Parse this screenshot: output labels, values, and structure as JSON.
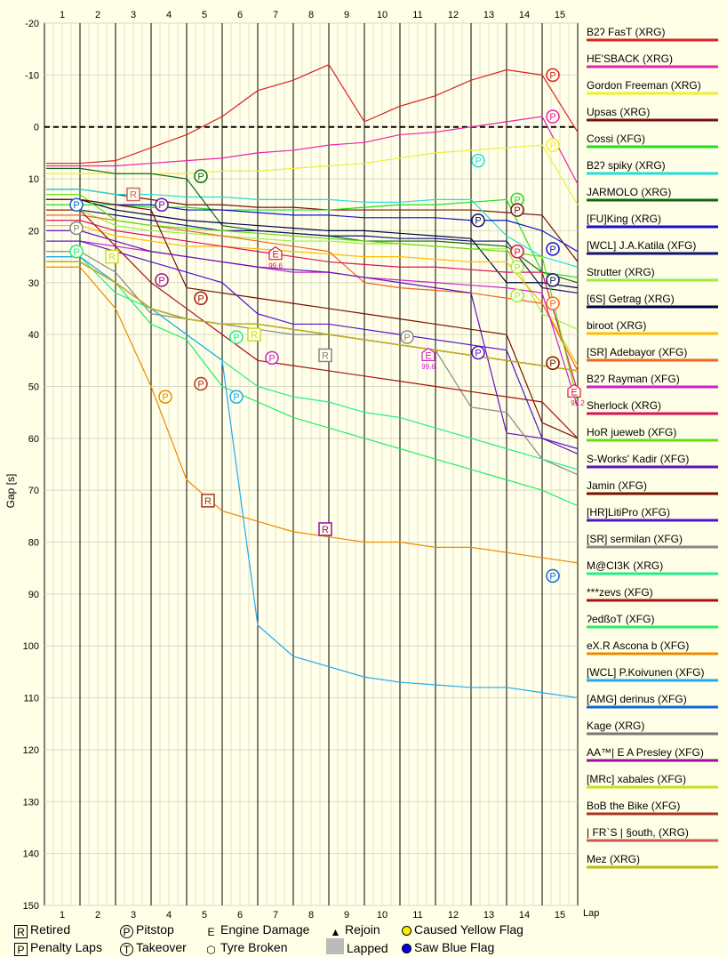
{
  "chart_data": {
    "type": "line",
    "ylabel": "Gap [s]",
    "xlabel": "Lap",
    "ylim": [
      -20,
      150
    ],
    "y_ticks": [
      "-20",
      "-10",
      "0",
      "10",
      "20",
      "30",
      "40",
      "50",
      "60",
      "70",
      "80",
      "90",
      "100",
      "110",
      "120",
      "130",
      "140",
      "150"
    ],
    "x_ticks": [
      "1",
      "2",
      "3",
      "4",
      "5",
      "6",
      "7",
      "8",
      "9",
      "10",
      "11",
      "12",
      "13",
      "14",
      "15"
    ],
    "x_end_label": "Lap",
    "grid": true,
    "series": [
      {
        "name": "B2ʔ FasT (XRG)",
        "color": "#dd2222",
        "values": [
          7,
          6.5,
          4,
          1.5,
          -2,
          -7,
          -9,
          -12,
          -1,
          -4,
          -6,
          -9,
          -11,
          -10,
          1
        ]
      },
      {
        "name": "HE'SBACK (XRG)",
        "color": "#ee22aa",
        "values": [
          7.5,
          7.5,
          7,
          6.5,
          6,
          5,
          4.5,
          3.5,
          3,
          1.5,
          1,
          0,
          -1,
          -2,
          11
        ]
      },
      {
        "name": "Gordon Freeman (XRG)",
        "color": "#eeee33",
        "values": [
          9,
          9,
          9,
          9,
          8.5,
          8.5,
          8,
          7.5,
          7,
          6,
          5,
          4.5,
          4,
          3.5,
          15
        ]
      },
      {
        "name": "Upsas (XRG)",
        "color": "#771111",
        "values": [
          12,
          13,
          14,
          15,
          15,
          15.5,
          15.5,
          16,
          16,
          16,
          16,
          16,
          16.5,
          17,
          26
        ]
      },
      {
        "name": "Cossi (XFG)",
        "color": "#22dd22",
        "values": [
          15,
          15,
          15.5,
          15.5,
          16,
          16,
          16,
          16,
          15.5,
          15,
          15,
          14.5,
          14,
          28,
          29
        ]
      },
      {
        "name": "B2ʔ spiky (XRG)",
        "color": "#22dddd",
        "values": [
          12,
          13,
          13,
          13.5,
          13.5,
          14,
          14,
          14,
          14.5,
          14.5,
          14,
          14,
          21,
          25,
          27
        ]
      },
      {
        "name": "JARMOLO (XRG)",
        "color": "#116611",
        "values": [
          8,
          9,
          9,
          10,
          19,
          20,
          20.5,
          21,
          22,
          22,
          22,
          22.5,
          23,
          28,
          30
        ]
      },
      {
        "name": "[FU]King (XRG)",
        "color": "#1111cc",
        "values": [
          14,
          15,
          15,
          16,
          16,
          16.5,
          17,
          17,
          17.5,
          17.5,
          17.5,
          18,
          18,
          20,
          24
        ]
      },
      {
        "name": "[WCL] J.A.Katila (XFG)",
        "color": "#111177",
        "values": [
          16,
          17,
          18,
          19,
          20,
          20,
          20.5,
          21,
          21,
          21.5,
          21.5,
          22,
          22,
          31,
          32
        ]
      },
      {
        "name": "Strutter (XRG)",
        "color": "#99ee44",
        "values": [
          16,
          19,
          20,
          20.5,
          21,
          21.5,
          22,
          22,
          22.5,
          22.5,
          23,
          23.5,
          23.5,
          36,
          39
        ]
      },
      {
        "name": "[6S] Getrag (XRG)",
        "color": "#000044",
        "values": [
          14,
          16,
          17,
          18,
          18.5,
          19,
          19.5,
          20,
          20,
          20.5,
          21,
          21.5,
          30,
          30,
          31
        ]
      },
      {
        "name": "biroot (XRG)",
        "color": "#ffbb00",
        "values": [
          19,
          21,
          22,
          23,
          23,
          23.5,
          24,
          24.5,
          25,
          25,
          25.5,
          26,
          26,
          34,
          46
        ]
      },
      {
        "name": "[SR] Adebayor (XFG)",
        "color": "#ee6622",
        "values": [
          17,
          18,
          19,
          20,
          21,
          22,
          23,
          24,
          30,
          31,
          31.5,
          32,
          33,
          34,
          47
        ]
      },
      {
        "name": "B2ʔ Rayman (XFG)",
        "color": "#cc22cc",
        "values": [
          22,
          23,
          24,
          25,
          26,
          27,
          28,
          28,
          29,
          29.5,
          30,
          30.5,
          31,
          32,
          54
        ]
      },
      {
        "name": "Sherlock (XRG)",
        "color": "#dd1155",
        "values": [
          18,
          20,
          21,
          22,
          23,
          24,
          25,
          26,
          26.5,
          27,
          27,
          27.5,
          28,
          28,
          51
        ]
      },
      {
        "name": "HoR jueweb (XFG)",
        "color": "#66dd11",
        "values": [
          13,
          18,
          19,
          19.5,
          20,
          20.5,
          21,
          21.5,
          22,
          22.5,
          23,
          23.5,
          24,
          25,
          53
        ]
      },
      {
        "name": "S-Works' Kadir (XFG)",
        "color": "#6611bb",
        "values": [
          20,
          22,
          24,
          25,
          26,
          27,
          27.5,
          28,
          29,
          30,
          31,
          32,
          59,
          60,
          63
        ]
      },
      {
        "name": "Jamin (XFG)",
        "color": "#771100",
        "values": [
          14,
          15,
          16,
          31,
          32,
          33,
          34,
          35,
          36,
          37,
          38,
          39,
          40,
          57,
          60
        ]
      },
      {
        "name": "[HR]LitiPro (XFG)",
        "color": "#5511cc",
        "values": [
          22,
          24,
          26,
          28,
          30,
          36,
          38,
          38,
          39,
          40,
          41,
          42,
          43,
          60,
          62
        ]
      },
      {
        "name": "[SR] sermilan (XFG)",
        "color": "#888888",
        "values": [
          24,
          28,
          36,
          37,
          38,
          39,
          40,
          40,
          41,
          42,
          43,
          54,
          55,
          64,
          67
        ]
      },
      {
        "name": "M@CI3K (XRG)",
        "color": "#22ee88",
        "values": [
          25,
          32,
          35,
          40,
          45,
          50,
          52,
          53,
          55,
          56,
          58,
          60,
          62,
          64,
          66
        ]
      },
      {
        "name": "***zevs (XFG)",
        "color": "#aa1111",
        "values": [
          16,
          23,
          30,
          35,
          40,
          45,
          46,
          47,
          48,
          49,
          50,
          51,
          52,
          53,
          60
        ]
      },
      {
        "name": "ʔedßoT (XFG)",
        "color": "#22ee66",
        "values": [
          25,
          30,
          38,
          41,
          50,
          53,
          56,
          58,
          60,
          62,
          64,
          66,
          68,
          70,
          73
        ]
      },
      {
        "name": "eX.R Ascona b (XFG)",
        "color": "#ee8800",
        "values": [
          27,
          35,
          50,
          68,
          74,
          76,
          78,
          79,
          80,
          80,
          81,
          81,
          82,
          83,
          84
        ]
      },
      {
        "name": "[WCL] P.Koivunen (XFG)",
        "color": "#22aaee",
        "values": [
          25,
          30,
          35,
          40,
          45,
          96,
          102,
          104,
          106,
          107,
          107.5,
          108,
          108,
          109,
          110
        ]
      },
      {
        "name": "[AMG] derinus (XFG)",
        "color": "#1166dd",
        "values": [
          26,
          30,
          35,
          37,
          38,
          38,
          39,
          40,
          41,
          42,
          43,
          44,
          45,
          46,
          47
        ]
      },
      {
        "name": "Kage (XRG)",
        "color": "#777777",
        "values": [
          26,
          30,
          35,
          37,
          38,
          38,
          39,
          40,
          41,
          42,
          43,
          44,
          45,
          46,
          47
        ]
      },
      {
        "name": "AA™| E A Presley (XFG)",
        "color": "#991199",
        "values": [
          26,
          30,
          35,
          37,
          38,
          38,
          39,
          40,
          41,
          42,
          43,
          44,
          45,
          46,
          47
        ]
      },
      {
        "name": "[MRc] xabales (XFG)",
        "color": "#ccdd22",
        "values": [
          26,
          30,
          35,
          37,
          38,
          38,
          39,
          40,
          41,
          42,
          43,
          44,
          45,
          46,
          47
        ]
      },
      {
        "name": "BoB the Bike (XFG)",
        "color": "#aa3322",
        "values": [
          26,
          30,
          35,
          37,
          38,
          38,
          39,
          40,
          41,
          42,
          43,
          44,
          45,
          46,
          47
        ]
      },
      {
        "name": "| FR`S | §outh, (XRG)",
        "color": "#cc5555",
        "values": [
          26,
          30,
          35,
          37,
          38,
          38,
          39,
          40,
          41,
          42,
          43,
          44,
          45,
          46,
          47
        ]
      },
      {
        "name": "Mez (XRG)",
        "color": "#bbbb11",
        "values": [
          26,
          30,
          35,
          37,
          38,
          38,
          39,
          40,
          41,
          42,
          43,
          44,
          45,
          46,
          47
        ]
      }
    ],
    "markers": [
      {
        "label": "P",
        "kind": "pitstop",
        "x": 0.9,
        "y": 15,
        "color": "#1166dd"
      },
      {
        "label": "P",
        "kind": "pitstop",
        "x": 3.3,
        "y": 15,
        "color": "#6611bb"
      },
      {
        "label": "P",
        "kind": "pitstop",
        "x": 4.4,
        "y": 9.5,
        "color": "#116611"
      },
      {
        "label": "R",
        "kind": "retired",
        "x": 2.5,
        "y": 13,
        "color": "#cc6666"
      },
      {
        "label": "P",
        "kind": "pitstop",
        "x": 0.9,
        "y": 19.5,
        "color": "#888888"
      },
      {
        "label": "P",
        "kind": "pitstop",
        "x": 0.9,
        "y": 24,
        "color": "#22ee88"
      },
      {
        "label": "R",
        "kind": "retired",
        "x": 1.9,
        "y": 25,
        "color": "#ccdd22"
      },
      {
        "label": "E",
        "kind": "engine",
        "x": 6.5,
        "y": 24.5,
        "color": "#dd1155"
      },
      {
        "label": "P",
        "kind": "pitstop",
        "x": 3.3,
        "y": 29.5,
        "color": "#991199"
      },
      {
        "label": "P",
        "kind": "pitstop",
        "x": 4.4,
        "y": 33,
        "color": "#aa1111"
      },
      {
        "label": "P",
        "kind": "pitstop",
        "x": 5.4,
        "y": 40.5,
        "color": "#22ee88"
      },
      {
        "label": "R",
        "kind": "retired",
        "x": 5.9,
        "y": 40,
        "color": "#ccdd22"
      },
      {
        "label": "P",
        "kind": "pitstop",
        "x": 6.4,
        "y": 44.5,
        "color": "#cc22cc"
      },
      {
        "label": "R",
        "kind": "retired",
        "x": 7.9,
        "y": 44,
        "color": "#888888"
      },
      {
        "label": "P",
        "kind": "pitstop",
        "x": 10.2,
        "y": 40.5,
        "color": "#888888"
      },
      {
        "label": "E",
        "kind": "engine",
        "x": 10.8,
        "y": 44,
        "color": "#cc22cc"
      },
      {
        "label": "P",
        "kind": "pitstop",
        "x": 4.4,
        "y": 49.5,
        "color": "#aa3322"
      },
      {
        "label": "P",
        "kind": "pitstop",
        "x": 3.4,
        "y": 52,
        "color": "#ee8800"
      },
      {
        "label": "P",
        "kind": "pitstop",
        "x": 5.4,
        "y": 52,
        "color": "#22aaee"
      },
      {
        "label": "R",
        "kind": "retired",
        "x": 4.6,
        "y": 72,
        "color": "#aa3322"
      },
      {
        "label": "R",
        "kind": "retired",
        "x": 7.9,
        "y": 77.5,
        "color": "#991199"
      },
      {
        "label": "P",
        "kind": "pitstop",
        "x": 12.2,
        "y": 6.5,
        "color": "#22dddd"
      },
      {
        "label": "P",
        "kind": "pitstop",
        "x": 12.2,
        "y": 18,
        "color": "#111177"
      },
      {
        "label": "P",
        "kind": "pitstop",
        "x": 12.2,
        "y": 43.5,
        "color": "#5511cc"
      },
      {
        "label": "P",
        "kind": "pitstop",
        "x": 13.3,
        "y": 14,
        "color": "#22dd22"
      },
      {
        "label": "P",
        "kind": "pitstop",
        "x": 13.3,
        "y": 16,
        "color": "#771111"
      },
      {
        "label": "P",
        "kind": "pitstop",
        "x": 13.3,
        "y": 24,
        "color": "#dd1155"
      },
      {
        "label": "P",
        "kind": "pitstop",
        "x": 13.3,
        "y": 27,
        "color": "#99ee44"
      },
      {
        "label": "P",
        "kind": "pitstop",
        "x": 13.3,
        "y": 32.5,
        "color": "#99ee44"
      },
      {
        "label": "P",
        "kind": "pitstop",
        "x": 14.3,
        "y": -10,
        "color": "#dd2222"
      },
      {
        "label": "P",
        "kind": "pitstop",
        "x": 14.3,
        "y": -2,
        "color": "#ee22aa"
      },
      {
        "label": "P",
        "kind": "pitstop",
        "x": 14.3,
        "y": 3.5,
        "color": "#eeee33"
      },
      {
        "label": "P",
        "kind": "pitstop",
        "x": 14.3,
        "y": 23.5,
        "color": "#1111cc"
      },
      {
        "label": "P",
        "kind": "pitstop",
        "x": 14.3,
        "y": 29.5,
        "color": "#111177"
      },
      {
        "label": "P",
        "kind": "pitstop",
        "x": 14.3,
        "y": 34,
        "color": "#ee6622"
      },
      {
        "label": "P",
        "kind": "pitstop",
        "x": 14.3,
        "y": 45.5,
        "color": "#771100"
      },
      {
        "label": "P",
        "kind": "pitstop",
        "x": 14.3,
        "y": 86.5,
        "color": "#1166dd"
      },
      {
        "label": "E",
        "kind": "engine",
        "x": 14.9,
        "y": 51,
        "color": "#dd1155"
      }
    ],
    "annotations": [
      {
        "text": "99.6",
        "x": 6.5,
        "y": 26.5,
        "color": "#dd1155"
      },
      {
        "text": "99.6",
        "x": 10.8,
        "y": 46,
        "color": "#cc22cc"
      },
      {
        "text": "99.2",
        "x": 15.0,
        "y": 53,
        "color": "#dd1155"
      }
    ]
  },
  "legend": {
    "retired": "Retired",
    "penalty": "Penalty Laps",
    "pitstop": "Pitstop",
    "takeover": "Takeover",
    "engine": "Engine Damage",
    "tyre": "Tyre Broken",
    "rejoin": "Rejoin",
    "lapped": "Lapped",
    "yellow": "Caused Yellow Flag",
    "blue": "Saw Blue Flag",
    "sym_r": "R",
    "sym_p": "P",
    "sym_t": "T",
    "sym_e": "E",
    "sym_rejoin": "▲",
    "sym_tyre": "⬡"
  }
}
